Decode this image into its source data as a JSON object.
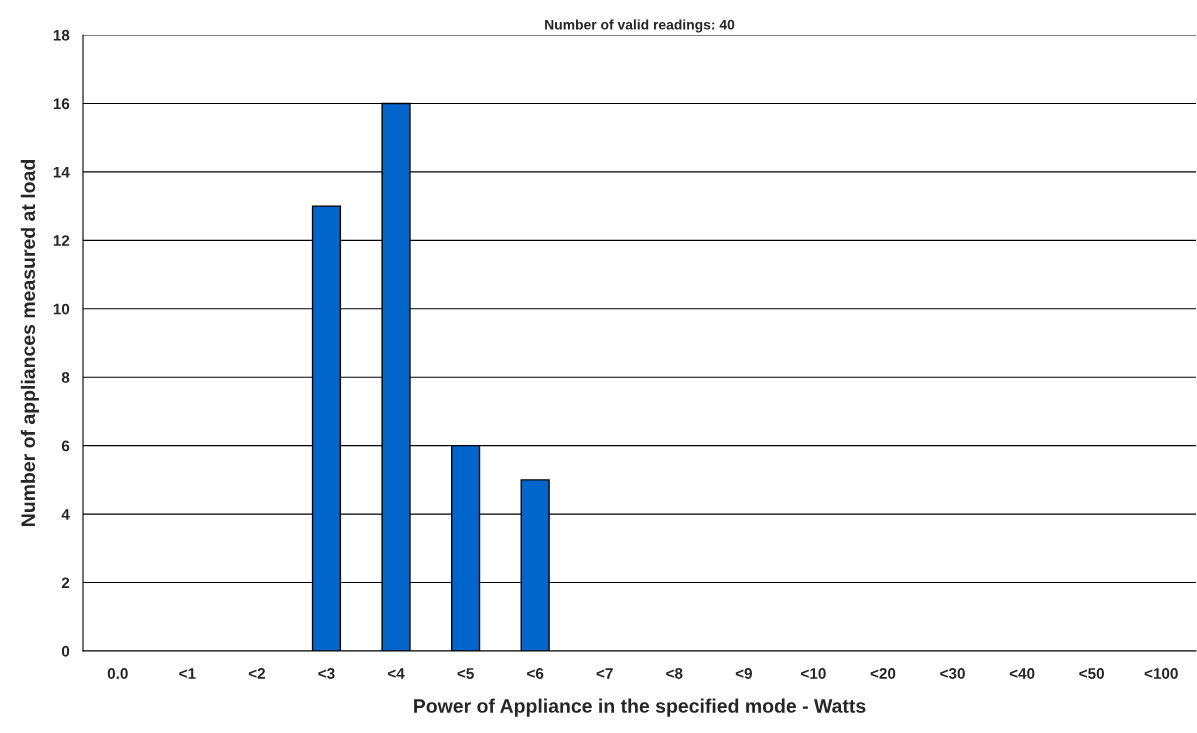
{
  "chart_data": {
    "type": "bar",
    "title": "Number of valid readings: 40",
    "xlabel": "Power of Appliance in the specified mode - Watts",
    "ylabel": "Number of appliances measured at load",
    "categories": [
      "0.0",
      "<1",
      "<2",
      "<3",
      "<4",
      "<5",
      "<6",
      "<7",
      "<8",
      "<9",
      "<10",
      "<20",
      "<30",
      "<40",
      "<50",
      "<100"
    ],
    "values": [
      0,
      0,
      0,
      13,
      16,
      6,
      5,
      0,
      0,
      0,
      0,
      0,
      0,
      0,
      0,
      0
    ],
    "color": "#0066cc",
    "ylim": [
      0,
      18
    ],
    "yticks": [
      0,
      2,
      4,
      6,
      8,
      10,
      12,
      14,
      16,
      18
    ],
    "grid": "y"
  }
}
